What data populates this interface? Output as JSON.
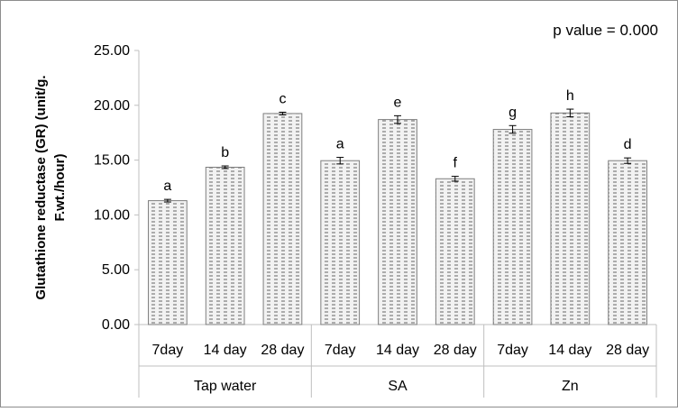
{
  "chart_data": {
    "type": "bar",
    "title": "",
    "xlabel": "",
    "ylabel_lines": [
      "Glutathione reductase  (GR) (unit/g.",
      "F.wt./hour)"
    ],
    "ylim": [
      0,
      25
    ],
    "yticks": [
      "0.00",
      "5.00",
      "10.00",
      "15.00",
      "20.00",
      "25.00"
    ],
    "grid": false,
    "annotation": "p value = 0.000",
    "groups": [
      {
        "name": "Tap water",
        "categories": [
          "7day",
          "14 day",
          "28 day"
        ],
        "values": [
          11.3,
          14.35,
          19.25
        ],
        "errors": [
          0.12,
          0.12,
          0.12
        ],
        "letters": [
          "a",
          "b",
          "c"
        ]
      },
      {
        "name": "SA",
        "categories": [
          "7day",
          "14 day",
          "28 day"
        ],
        "values": [
          14.95,
          18.7,
          13.3
        ],
        "errors": [
          0.3,
          0.35,
          0.22
        ],
        "letters": [
          "a",
          "e",
          "f"
        ]
      },
      {
        "name": "Zn",
        "categories": [
          "7day",
          "14 day",
          "28 day"
        ],
        "values": [
          17.8,
          19.3,
          14.95
        ],
        "errors": [
          0.35,
          0.35,
          0.25
        ],
        "letters": [
          "g",
          "h",
          "d"
        ]
      }
    ],
    "bar_fill": "#f2f2f2",
    "bar_pattern": "#666666",
    "axis_color": "#bfbfbf"
  }
}
